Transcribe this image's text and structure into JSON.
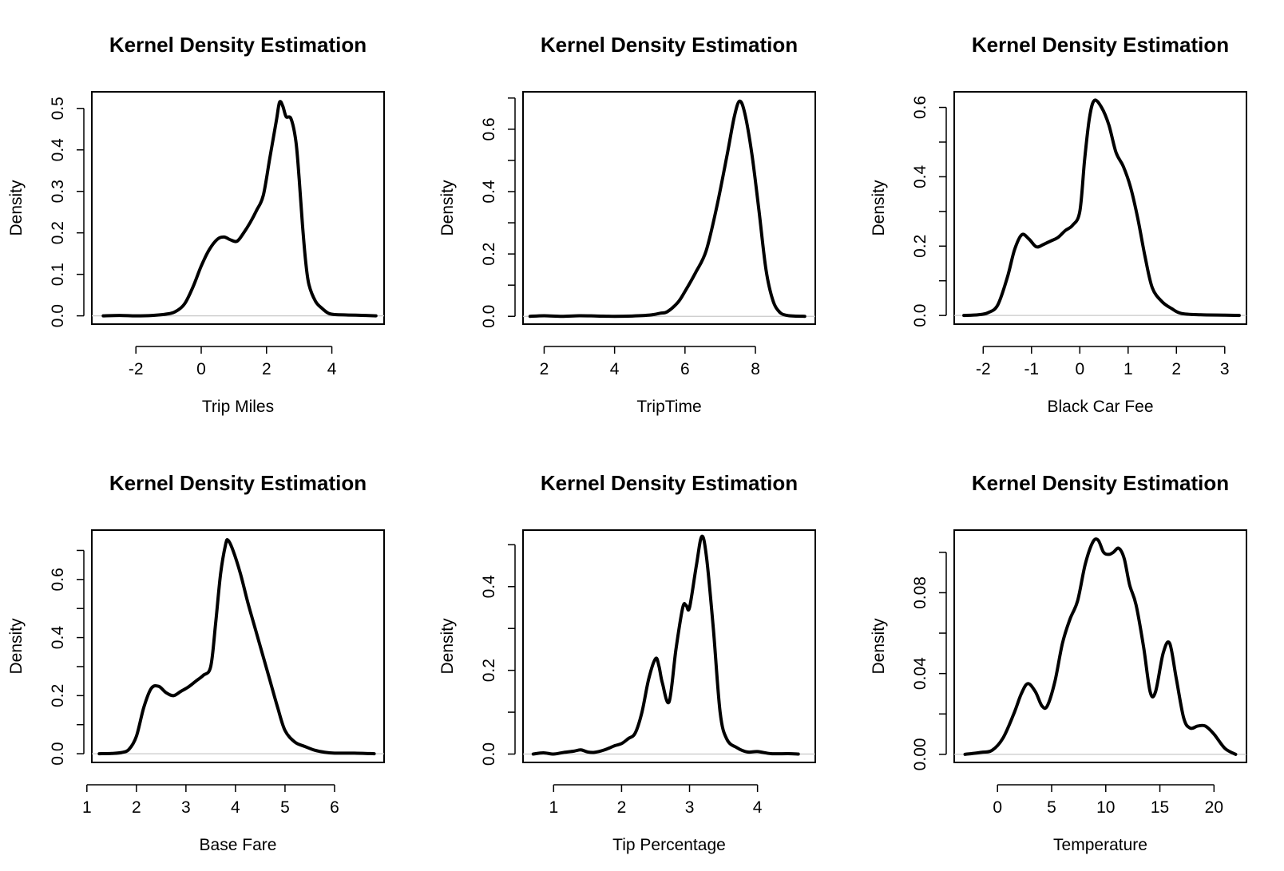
{
  "chart_data": [
    {
      "type": "line",
      "title": "Kernel Density Estimation",
      "xlabel": "Trip Miles",
      "ylabel": "Density",
      "xlim": [
        -3.35,
        5.6
      ],
      "ylim": [
        -0.02,
        0.54
      ],
      "xticks": [
        -2,
        0,
        2,
        4
      ],
      "yticks": [
        0.0,
        0.1,
        0.2,
        0.3,
        0.4,
        0.5
      ],
      "ytick_labels": [
        "0.0",
        "0.1",
        "0.2",
        "0.3",
        "0.4",
        "0.5"
      ],
      "x": [
        -3.0,
        -2.5,
        -2.0,
        -1.5,
        -1.0,
        -0.75,
        -0.5,
        -0.25,
        0.0,
        0.25,
        0.5,
        0.7,
        0.9,
        1.1,
        1.3,
        1.5,
        1.7,
        1.9,
        2.1,
        2.3,
        2.4,
        2.5,
        2.6,
        2.75,
        2.9,
        3.0,
        3.1,
        3.2,
        3.3,
        3.5,
        3.7,
        3.9,
        4.1,
        4.5,
        5.0,
        5.35
      ],
      "y": [
        0.0,
        0.001,
        0.0,
        0.001,
        0.005,
        0.012,
        0.03,
        0.07,
        0.12,
        0.16,
        0.185,
        0.19,
        0.183,
        0.18,
        0.2,
        0.225,
        0.255,
        0.29,
        0.38,
        0.47,
        0.515,
        0.505,
        0.48,
        0.475,
        0.42,
        0.33,
        0.22,
        0.13,
        0.075,
        0.035,
        0.018,
        0.006,
        0.003,
        0.002,
        0.001,
        0.0
      ]
    },
    {
      "type": "line",
      "title": "Kernel Density Estimation",
      "xlabel": "TripTime",
      "ylabel": "Density",
      "xlim": [
        1.4,
        9.7
      ],
      "ylim": [
        -0.025,
        0.72
      ],
      "xticks": [
        2,
        4,
        6,
        8
      ],
      "yticks": [
        0.0,
        0.1,
        0.2,
        0.3,
        0.4,
        0.5,
        0.6,
        0.7
      ],
      "ytick_labels": [
        "0.0",
        "",
        "0.2",
        "",
        "0.4",
        "",
        "0.6",
        ""
      ],
      "x": [
        1.6,
        2.0,
        2.5,
        3.0,
        3.5,
        4.0,
        4.5,
        5.0,
        5.3,
        5.5,
        5.8,
        6.0,
        6.3,
        6.6,
        6.9,
        7.2,
        7.4,
        7.55,
        7.7,
        7.9,
        8.1,
        8.3,
        8.5,
        8.7,
        8.9,
        9.1,
        9.4
      ],
      "y": [
        0.0,
        0.002,
        0.0,
        0.002,
        0.001,
        0.0,
        0.001,
        0.004,
        0.01,
        0.015,
        0.045,
        0.08,
        0.14,
        0.21,
        0.35,
        0.52,
        0.64,
        0.69,
        0.65,
        0.52,
        0.34,
        0.15,
        0.05,
        0.012,
        0.003,
        0.001,
        0.0
      ]
    },
    {
      "type": "line",
      "title": "Kernel Density Estimation",
      "xlabel": "Black Car Fee",
      "ylabel": "Density",
      "xlim": [
        -2.6,
        3.45
      ],
      "ylim": [
        -0.025,
        0.645
      ],
      "xticks": [
        -2,
        -1,
        0,
        1,
        2,
        3
      ],
      "yticks": [
        0.0,
        0.1,
        0.2,
        0.3,
        0.4,
        0.5,
        0.6
      ],
      "ytick_labels": [
        "0.0",
        "",
        "0.2",
        "",
        "0.4",
        "",
        "0.6"
      ],
      "x": [
        -2.4,
        -2.1,
        -1.9,
        -1.7,
        -1.5,
        -1.35,
        -1.2,
        -1.05,
        -0.9,
        -0.75,
        -0.6,
        -0.45,
        -0.3,
        -0.15,
        0.0,
        0.1,
        0.2,
        0.3,
        0.45,
        0.6,
        0.75,
        0.9,
        1.05,
        1.2,
        1.35,
        1.5,
        1.7,
        1.9,
        2.1,
        2.5,
        3.0,
        3.3
      ],
      "y": [
        0.0,
        0.002,
        0.008,
        0.03,
        0.11,
        0.19,
        0.233,
        0.22,
        0.198,
        0.205,
        0.215,
        0.225,
        0.245,
        0.26,
        0.3,
        0.45,
        0.57,
        0.62,
        0.6,
        0.55,
        0.47,
        0.43,
        0.37,
        0.28,
        0.17,
        0.08,
        0.04,
        0.02,
        0.006,
        0.002,
        0.001,
        0.0
      ]
    },
    {
      "type": "line",
      "title": "Kernel Density Estimation",
      "xlabel": "Base Fare",
      "ylabel": "Density",
      "xlim": [
        1.1,
        7.0
      ],
      "ylim": [
        -0.03,
        0.77
      ],
      "xticks": [
        1,
        2,
        3,
        4,
        5,
        6
      ],
      "yticks": [
        0.0,
        0.1,
        0.2,
        0.3,
        0.4,
        0.5,
        0.6,
        0.7
      ],
      "ytick_labels": [
        "0.0",
        "",
        "0.2",
        "",
        "0.4",
        "",
        "0.6",
        ""
      ],
      "x": [
        1.25,
        1.5,
        1.7,
        1.85,
        2.0,
        2.15,
        2.3,
        2.45,
        2.6,
        2.75,
        2.9,
        3.05,
        3.2,
        3.35,
        3.5,
        3.6,
        3.7,
        3.8,
        3.85,
        3.95,
        4.1,
        4.25,
        4.4,
        4.55,
        4.7,
        4.85,
        5.0,
        5.2,
        5.4,
        5.6,
        5.8,
        6.0,
        6.4,
        6.8
      ],
      "y": [
        0.0,
        0.001,
        0.004,
        0.015,
        0.06,
        0.16,
        0.225,
        0.232,
        0.21,
        0.2,
        0.215,
        0.23,
        0.25,
        0.27,
        0.3,
        0.45,
        0.62,
        0.72,
        0.735,
        0.7,
        0.62,
        0.52,
        0.43,
        0.34,
        0.25,
        0.16,
        0.08,
        0.04,
        0.025,
        0.012,
        0.005,
        0.002,
        0.002,
        0.0
      ]
    },
    {
      "type": "line",
      "title": "Kernel Density Estimation",
      "xlabel": "Tip Percentage",
      "ylabel": "Density",
      "xlim": [
        0.55,
        4.85
      ],
      "ylim": [
        -0.02,
        0.535
      ],
      "xticks": [
        1,
        2,
        3,
        4
      ],
      "yticks": [
        0.0,
        0.1,
        0.2,
        0.3,
        0.4,
        0.5
      ],
      "ytick_labels": [
        "0.0",
        "",
        "0.2",
        "",
        "0.4",
        ""
      ],
      "x": [
        0.7,
        0.85,
        1.0,
        1.15,
        1.3,
        1.4,
        1.5,
        1.6,
        1.75,
        1.9,
        2.0,
        2.1,
        2.2,
        2.3,
        2.4,
        2.5,
        2.55,
        2.6,
        2.7,
        2.8,
        2.9,
        2.95,
        3.0,
        3.1,
        3.18,
        3.25,
        3.35,
        3.45,
        3.55,
        3.7,
        3.85,
        4.0,
        4.2,
        4.45,
        4.6
      ],
      "y": [
        0.0,
        0.003,
        0.0,
        0.004,
        0.007,
        0.01,
        0.005,
        0.004,
        0.01,
        0.02,
        0.025,
        0.037,
        0.05,
        0.1,
        0.18,
        0.228,
        0.21,
        0.17,
        0.125,
        0.25,
        0.35,
        0.355,
        0.35,
        0.45,
        0.52,
        0.47,
        0.3,
        0.1,
        0.035,
        0.015,
        0.005,
        0.006,
        0.001,
        0.001,
        0.0
      ]
    },
    {
      "type": "line",
      "title": "Kernel Density Estimation",
      "xlabel": "Temperature",
      "ylabel": "Density",
      "xlim": [
        -4.0,
        23.0
      ],
      "ylim": [
        -0.004,
        0.111
      ],
      "xticks": [
        0,
        5,
        10,
        15,
        20
      ],
      "yticks": [
        0.0,
        0.02,
        0.04,
        0.06,
        0.08,
        0.1
      ],
      "ytick_labels": [
        "0.00",
        "",
        "0.04",
        "",
        "0.08",
        ""
      ],
      "x": [
        -3.0,
        -1.5,
        -0.5,
        0.5,
        1.5,
        2.2,
        2.8,
        3.5,
        4.1,
        4.6,
        5.3,
        6.0,
        6.7,
        7.4,
        8.1,
        8.8,
        9.3,
        9.8,
        10.3,
        10.7,
        11.2,
        11.7,
        12.2,
        12.8,
        13.5,
        14.1,
        14.6,
        15.3,
        15.9,
        16.5,
        17.2,
        17.8,
        18.5,
        19.2,
        20.0,
        21.0,
        22.0
      ],
      "y": [
        0.0,
        0.001,
        0.002,
        0.008,
        0.02,
        0.03,
        0.035,
        0.031,
        0.024,
        0.024,
        0.036,
        0.055,
        0.067,
        0.076,
        0.094,
        0.105,
        0.106,
        0.1,
        0.099,
        0.1,
        0.102,
        0.097,
        0.084,
        0.074,
        0.053,
        0.031,
        0.031,
        0.05,
        0.055,
        0.038,
        0.018,
        0.013,
        0.014,
        0.014,
        0.01,
        0.003,
        0.0
      ]
    }
  ]
}
